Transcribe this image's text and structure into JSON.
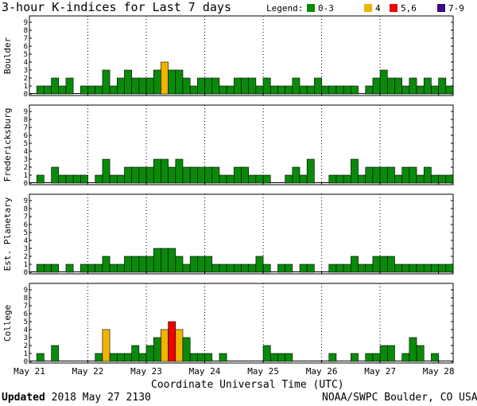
{
  "title": "3-hour K-indices for Last 7 days",
  "legend": {
    "label": "Legend:",
    "items": [
      {
        "label": "0-3",
        "color": "#0a8a0a"
      },
      {
        "label": "4",
        "color": "#f0b400"
      },
      {
        "label": "5,6",
        "color": "#ee0000"
      },
      {
        "label": "7-9",
        "color": "#3a0a8a"
      }
    ]
  },
  "footer": {
    "xaxis_label": "Coordinate Universal Time (UTC)",
    "updated_word": "Updated",
    "updated_time": "2018 May 27 2130",
    "credit": "NOAA/SWPC Boulder, CO USA"
  },
  "chart_data": [
    {
      "type": "bar",
      "ylabel": "Boulder",
      "ylim": [
        0,
        9
      ],
      "yticks": [
        0,
        1,
        2,
        3,
        4,
        5,
        6,
        7,
        8,
        9
      ],
      "x_tick_labels": [
        "May 21",
        "May 22",
        "May 23",
        "May 24",
        "May 25",
        "May 26",
        "May 27",
        "May 28"
      ],
      "values": [
        0,
        1,
        1,
        2,
        1,
        2,
        0,
        1,
        1,
        1,
        3,
        1,
        2,
        3,
        2,
        2,
        2,
        3,
        4,
        3,
        3,
        2,
        1,
        2,
        2,
        2,
        1,
        1,
        2,
        2,
        2,
        1,
        2,
        1,
        1,
        1,
        2,
        1,
        1,
        2,
        1,
        1,
        1,
        1,
        1,
        0,
        1,
        2,
        3,
        2,
        2,
        1,
        2,
        1,
        2,
        1,
        2,
        1,
        0
      ]
    },
    {
      "type": "bar",
      "ylabel": "Fredericksburg",
      "ylim": [
        0,
        9
      ],
      "yticks": [
        0,
        1,
        2,
        3,
        4,
        5,
        6,
        7,
        8,
        9
      ],
      "x_tick_labels": [
        "May 21",
        "May 22",
        "May 23",
        "May 24",
        "May 25",
        "May 26",
        "May 27",
        "May 28"
      ],
      "values": [
        0,
        1,
        0,
        2,
        1,
        1,
        1,
        1,
        0,
        1,
        3,
        1,
        1,
        2,
        2,
        2,
        2,
        3,
        3,
        2,
        3,
        2,
        2,
        2,
        2,
        2,
        1,
        1,
        2,
        2,
        1,
        1,
        1,
        0,
        0,
        1,
        2,
        1,
        3,
        0,
        0,
        1,
        1,
        1,
        3,
        1,
        2,
        2,
        2,
        2,
        1,
        2,
        2,
        1,
        2,
        1,
        1,
        1,
        0
      ]
    },
    {
      "type": "bar",
      "ylabel": "Est. Planetary",
      "ylim": [
        0,
        9
      ],
      "yticks": [
        0,
        1,
        2,
        3,
        4,
        5,
        6,
        7,
        8,
        9
      ],
      "x_tick_labels": [
        "May 21",
        "May 22",
        "May 23",
        "May 24",
        "May 25",
        "May 26",
        "May 27",
        "May 28"
      ],
      "values": [
        0,
        1,
        1,
        1,
        0,
        1,
        0,
        1,
        1,
        1,
        2,
        1,
        1,
        2,
        2,
        2,
        2,
        3,
        3,
        3,
        2,
        1,
        2,
        2,
        2,
        1,
        1,
        1,
        1,
        1,
        1,
        2,
        1,
        0,
        1,
        1,
        0,
        1,
        1,
        0,
        0,
        1,
        1,
        1,
        2,
        1,
        1,
        2,
        2,
        2,
        1,
        1,
        1,
        1,
        1,
        1,
        1,
        1,
        0
      ]
    },
    {
      "type": "bar",
      "ylabel": "College",
      "ylim": [
        0,
        9
      ],
      "yticks": [
        0,
        1,
        2,
        3,
        4,
        5,
        6,
        7,
        8,
        9
      ],
      "x_tick_labels": [
        "May 21",
        "May 22",
        "May 23",
        "May 24",
        "May 25",
        "May 26",
        "May 27",
        "May 28"
      ],
      "values": [
        0,
        1,
        0,
        2,
        0,
        0,
        0,
        0,
        0,
        1,
        4,
        1,
        1,
        1,
        2,
        1,
        2,
        3,
        4,
        5,
        4,
        3,
        1,
        1,
        1,
        0,
        1,
        0,
        0,
        0,
        0,
        0,
        2,
        1,
        1,
        1,
        0,
        0,
        0,
        0,
        0,
        1,
        0,
        0,
        1,
        0,
        1,
        1,
        2,
        2,
        0,
        1,
        3,
        2,
        0,
        1,
        0,
        0,
        0
      ]
    }
  ]
}
